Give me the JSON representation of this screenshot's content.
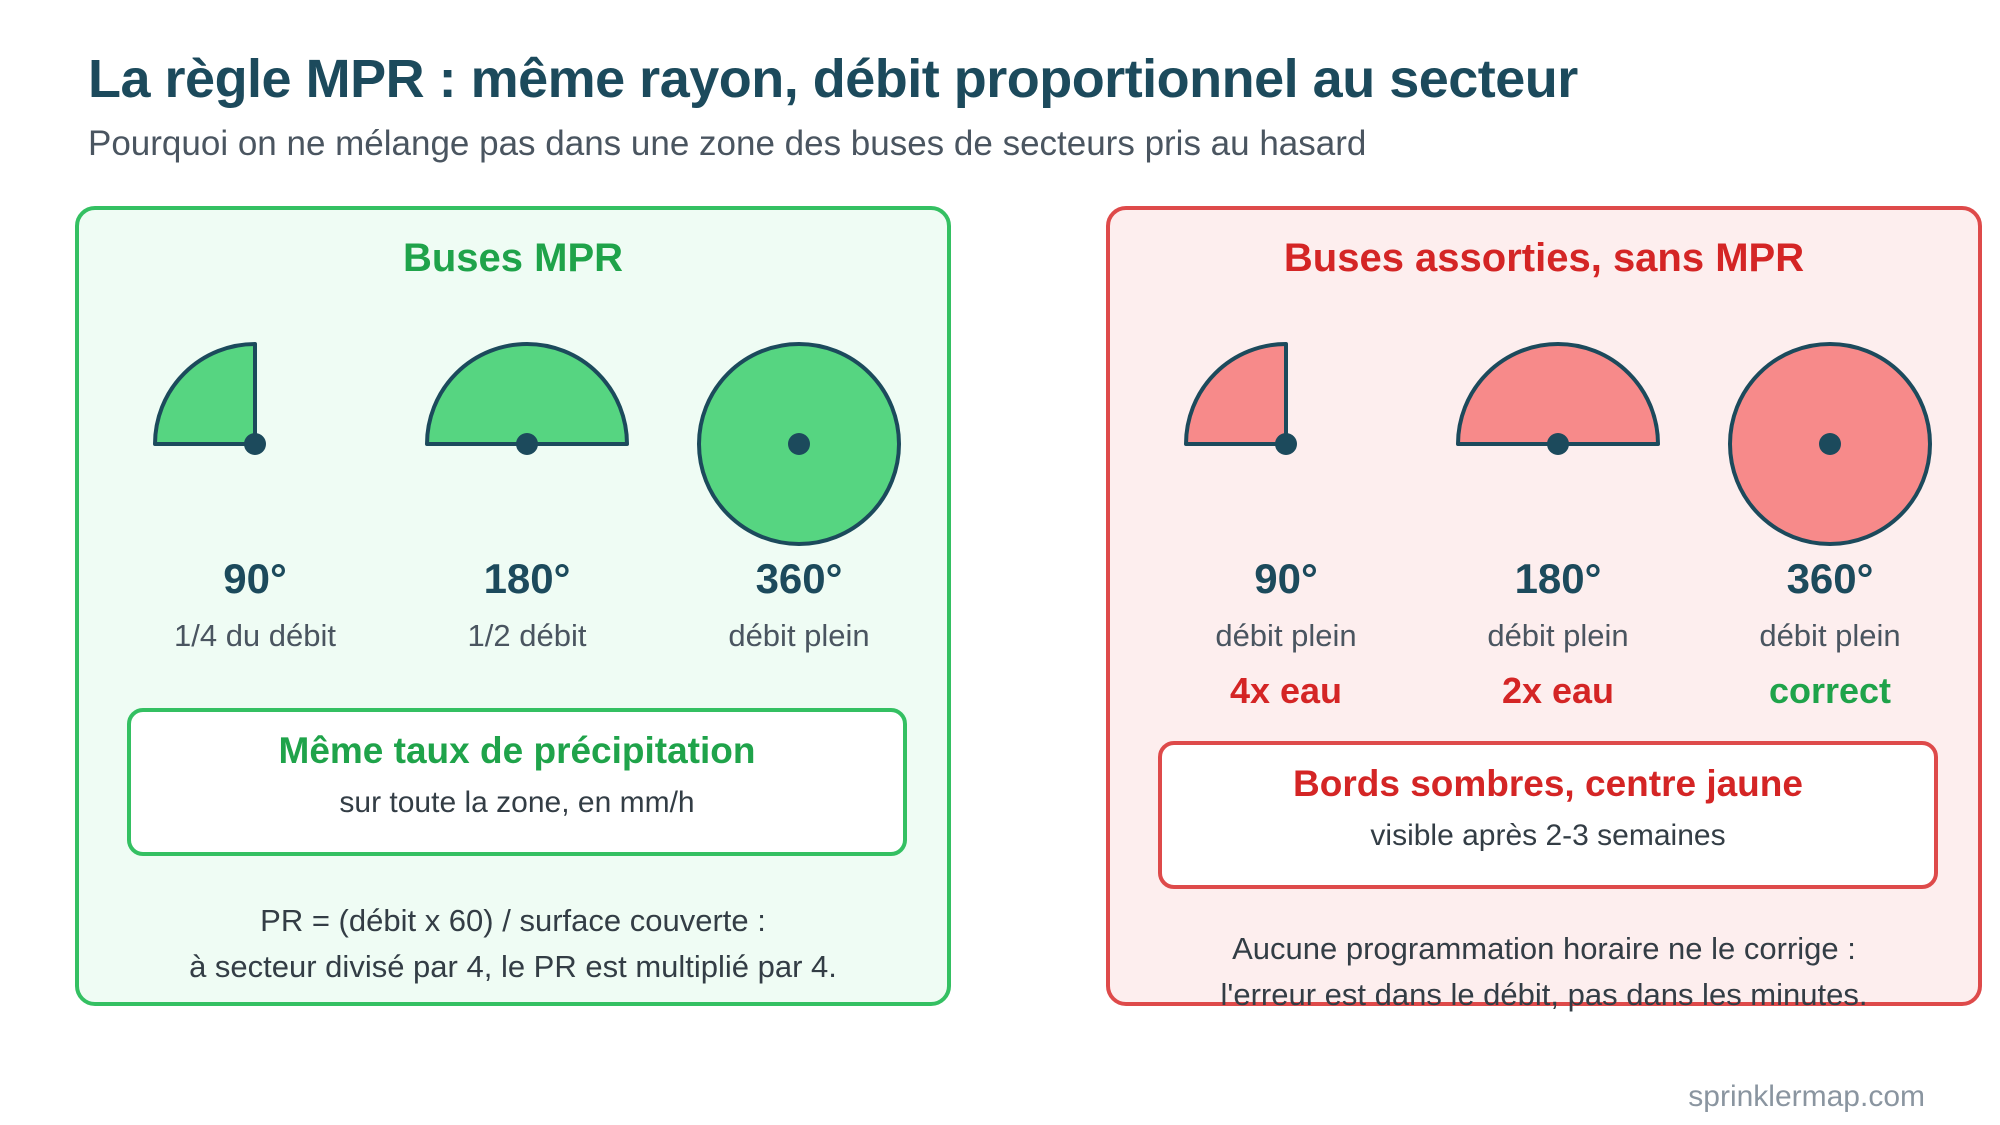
{
  "title": "La règle MPR : même rayon, débit proportionnel au secteur",
  "subtitle": "Pourquoi on ne mélange pas dans une zone des buses de secteurs pris au hasard",
  "panels": [
    {
      "title": "Buses MPR",
      "fill": "#56d581",
      "items": [
        {
          "deg": "90°",
          "desc": "1/4 du débit",
          "note": ""
        },
        {
          "deg": "180°",
          "desc": "1/2 débit",
          "note": ""
        },
        {
          "deg": "360°",
          "desc": "débit plein",
          "note": ""
        }
      ],
      "box_title": "Même taux de précipitation",
      "box_sub": "sur toute la zone, en mm/h",
      "foot1": "PR = (débit x 60) / surface couverte :",
      "foot2": "à secteur divisé par 4, le PR est multiplié par 4."
    },
    {
      "title": "Buses assorties, sans MPR",
      "fill": "#f78a8a",
      "items": [
        {
          "deg": "90°",
          "desc": "débit plein",
          "note": "4x eau"
        },
        {
          "deg": "180°",
          "desc": "débit plein",
          "note": "2x eau"
        },
        {
          "deg": "360°",
          "desc": "débit plein",
          "note": "correct"
        }
      ],
      "box_title": "Bords sombres, centre jaune",
      "box_sub": "visible après 2-3 semaines",
      "foot1": "Aucune programmation horaire ne le corrige :",
      "foot2": "l'erreur est dans le débit, pas dans les minutes."
    }
  ],
  "colors": {
    "outline": "#1c4a5c",
    "good": "#34c062",
    "bad": "#de4a4a"
  },
  "site": "sprinklermap.com"
}
